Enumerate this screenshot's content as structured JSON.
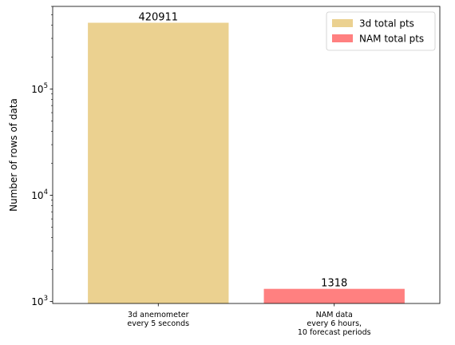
{
  "chart_data": {
    "type": "bar",
    "yscale": "log",
    "categories": [
      [
        "3d anemometer",
        "every 5 seconds"
      ],
      [
        "NAM data",
        "every 6 hours,",
        "10 forecast periods"
      ]
    ],
    "values": [
      420911,
      1318
    ],
    "value_labels": [
      "420911",
      "1318"
    ],
    "colors": [
      "#ebd190",
      "#ff8080"
    ],
    "series_names": [
      "3d total pts",
      "NAM total pts"
    ],
    "ylabel": "Number of rows of data",
    "xlabel": "",
    "ylim": [
      960,
      600000
    ],
    "major_ticks": [
      {
        "value": 1000,
        "base": "10",
        "exp": "3"
      },
      {
        "value": 10000,
        "base": "10",
        "exp": "4"
      },
      {
        "value": 100000,
        "base": "10",
        "exp": "5"
      }
    ],
    "legend": {
      "position": "top-right",
      "entries": [
        {
          "label": "3d total pts",
          "color": "#ebd190"
        },
        {
          "label": "NAM total pts",
          "color": "#ff8080"
        }
      ]
    }
  }
}
